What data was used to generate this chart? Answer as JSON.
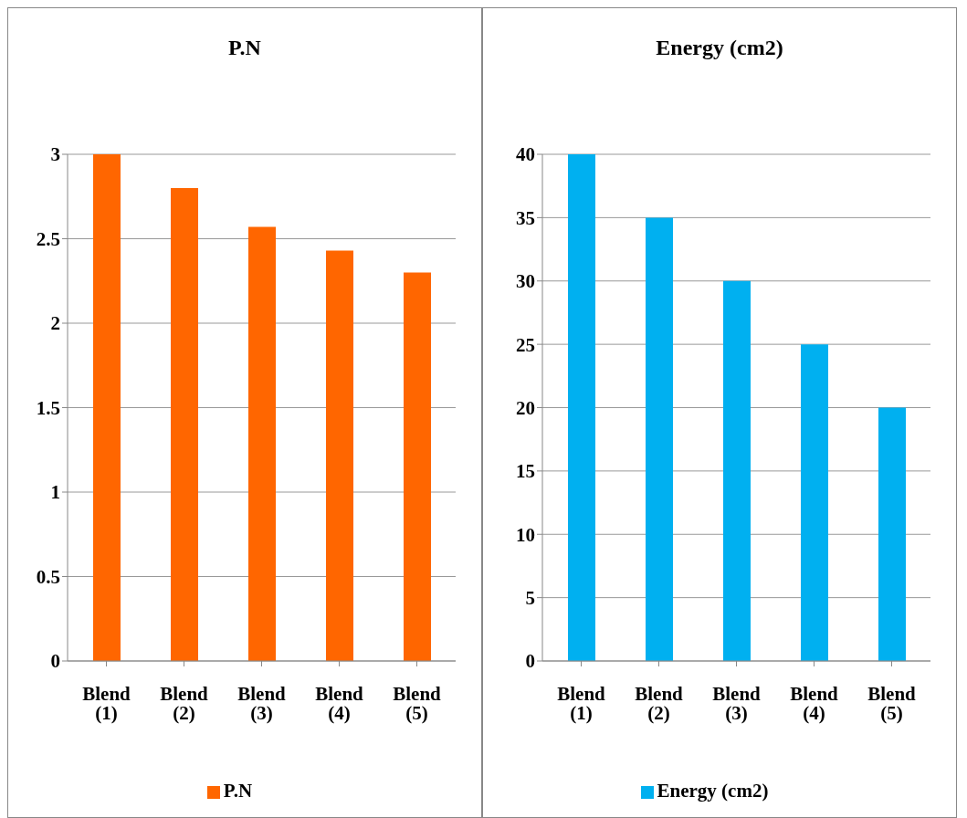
{
  "chart_data": [
    {
      "type": "bar",
      "title": "P.N",
      "categories": [
        "Blend (1)",
        "Blend (2)",
        "Blend (3)",
        "Blend (4)",
        "Blend (5)"
      ],
      "series": [
        {
          "name": "P.N",
          "color": "#ff6600",
          "values": [
            3,
            2.8,
            2.57,
            2.43,
            2.3
          ]
        }
      ],
      "ylim": [
        0,
        3
      ],
      "yticks": [
        0,
        0.5,
        1,
        1.5,
        2,
        2.5,
        3
      ],
      "grid": "y",
      "legend": "bottom"
    },
    {
      "type": "bar",
      "title": "Energy (cm2)",
      "categories": [
        "Blend (1)",
        "Blend (2)",
        "Blend (3)",
        "Blend (4)",
        "Blend (5)"
      ],
      "series": [
        {
          "name": "Energy (cm2)",
          "color": "#00b0f0",
          "values": [
            40,
            35,
            30,
            25,
            20
          ]
        }
      ],
      "ylim": [
        0,
        40
      ],
      "yticks": [
        0,
        5,
        10,
        15,
        20,
        25,
        30,
        35,
        40
      ],
      "grid": "y",
      "legend": "bottom"
    }
  ]
}
